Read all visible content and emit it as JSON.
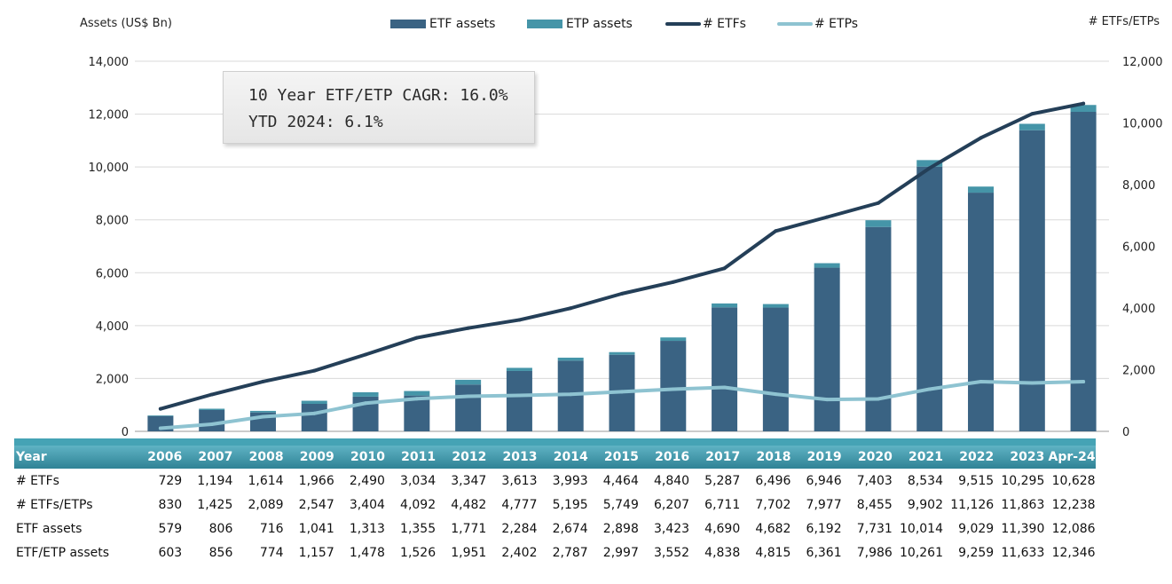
{
  "chart_data": {
    "type": "bar",
    "categories": [
      "2006",
      "2007",
      "2008",
      "2009",
      "2010",
      "2011",
      "2012",
      "2013",
      "2014",
      "2015",
      "2016",
      "2017",
      "2018",
      "2019",
      "2020",
      "2021",
      "2022",
      "2023",
      "Apr-24"
    ],
    "series": [
      {
        "name": "ETF assets",
        "kind": "bar-stack",
        "axis": "left",
        "color": "#3a6383",
        "values": [
          579,
          806,
          716,
          1041,
          1313,
          1355,
          1771,
          2284,
          2674,
          2898,
          3423,
          4690,
          4682,
          6192,
          7731,
          10014,
          9029,
          11390,
          12086
        ]
      },
      {
        "name": "ETP assets",
        "kind": "bar-stack",
        "axis": "left",
        "color": "#4595a8",
        "values": [
          24,
          50,
          58,
          116,
          165,
          171,
          180,
          118,
          113,
          99,
          129,
          148,
          133,
          169,
          255,
          247,
          230,
          243,
          260
        ]
      },
      {
        "name": "# ETFs",
        "kind": "line",
        "axis": "right",
        "color": "#243f58",
        "values": [
          729,
          1194,
          1614,
          1966,
          2490,
          3034,
          3347,
          3613,
          3993,
          4464,
          4840,
          5287,
          6496,
          6946,
          7403,
          8534,
          9515,
          10295,
          10628
        ]
      },
      {
        "name": "# ETPs",
        "kind": "line",
        "axis": "right",
        "color": "#8ec3d1",
        "values": [
          101,
          231,
          475,
          581,
          914,
          1058,
          1135,
          1164,
          1202,
          1285,
          1367,
          1424,
          1206,
          1031,
          1052,
          1368,
          1611,
          1568,
          1610
        ]
      }
    ],
    "ylabel": "Assets (US$ Bn)",
    "y2label": "# ETFs/ETPs",
    "ylim": [
      0,
      14000
    ],
    "y2lim": [
      0,
      12000
    ],
    "yticks": [
      "14,000",
      "12,000",
      "10,000",
      "8,000",
      "6,000",
      "4,000",
      "2,000",
      "0"
    ],
    "y2ticks": [
      "12,000",
      "10,000",
      "8,000",
      "6,000",
      "4,000",
      "2,000",
      "0"
    ],
    "grid": true,
    "legend_position": "top-center",
    "annotation": [
      "10 Year ETF/ETP CAGR: 16.0%",
      "YTD 2024: 6.1%"
    ]
  },
  "table": {
    "header_label": "Year",
    "columns": [
      "2006",
      "2007",
      "2008",
      "2009",
      "2010",
      "2011",
      "2012",
      "2013",
      "2014",
      "2015",
      "2016",
      "2017",
      "2018",
      "2019",
      "2020",
      "2021",
      "2022",
      "2023",
      "Apr-24"
    ],
    "rows": [
      {
        "label": "# ETFs",
        "values": [
          "729",
          "1,194",
          "1,614",
          "1,966",
          "2,490",
          "3,034",
          "3,347",
          "3,613",
          "3,993",
          "4,464",
          "4,840",
          "5,287",
          "6,496",
          "6,946",
          "7,403",
          "8,534",
          "9,515",
          "10,295",
          "10,628"
        ]
      },
      {
        "label": "# ETFs/ETPs",
        "values": [
          "830",
          "1,425",
          "2,089",
          "2,547",
          "3,404",
          "4,092",
          "4,482",
          "4,777",
          "5,195",
          "5,749",
          "6,207",
          "6,711",
          "7,702",
          "7,977",
          "8,455",
          "9,902",
          "11,126",
          "11,863",
          "12,238"
        ]
      },
      {
        "label": "ETF assets",
        "values": [
          "579",
          "806",
          "716",
          "1,041",
          "1,313",
          "1,355",
          "1,771",
          "2,284",
          "2,674",
          "2,898",
          "3,423",
          "4,690",
          "4,682",
          "6,192",
          "7,731",
          "10,014",
          "9,029",
          "11,390",
          "12,086"
        ]
      },
      {
        "label": "ETF/ETP assets",
        "values": [
          "603",
          "856",
          "774",
          "1,157",
          "1,478",
          "1,526",
          "1,951",
          "2,402",
          "2,787",
          "2,997",
          "3,552",
          "4,838",
          "4,815",
          "6,361",
          "7,986",
          "10,261",
          "9,259",
          "11,633",
          "12,346"
        ]
      }
    ]
  }
}
